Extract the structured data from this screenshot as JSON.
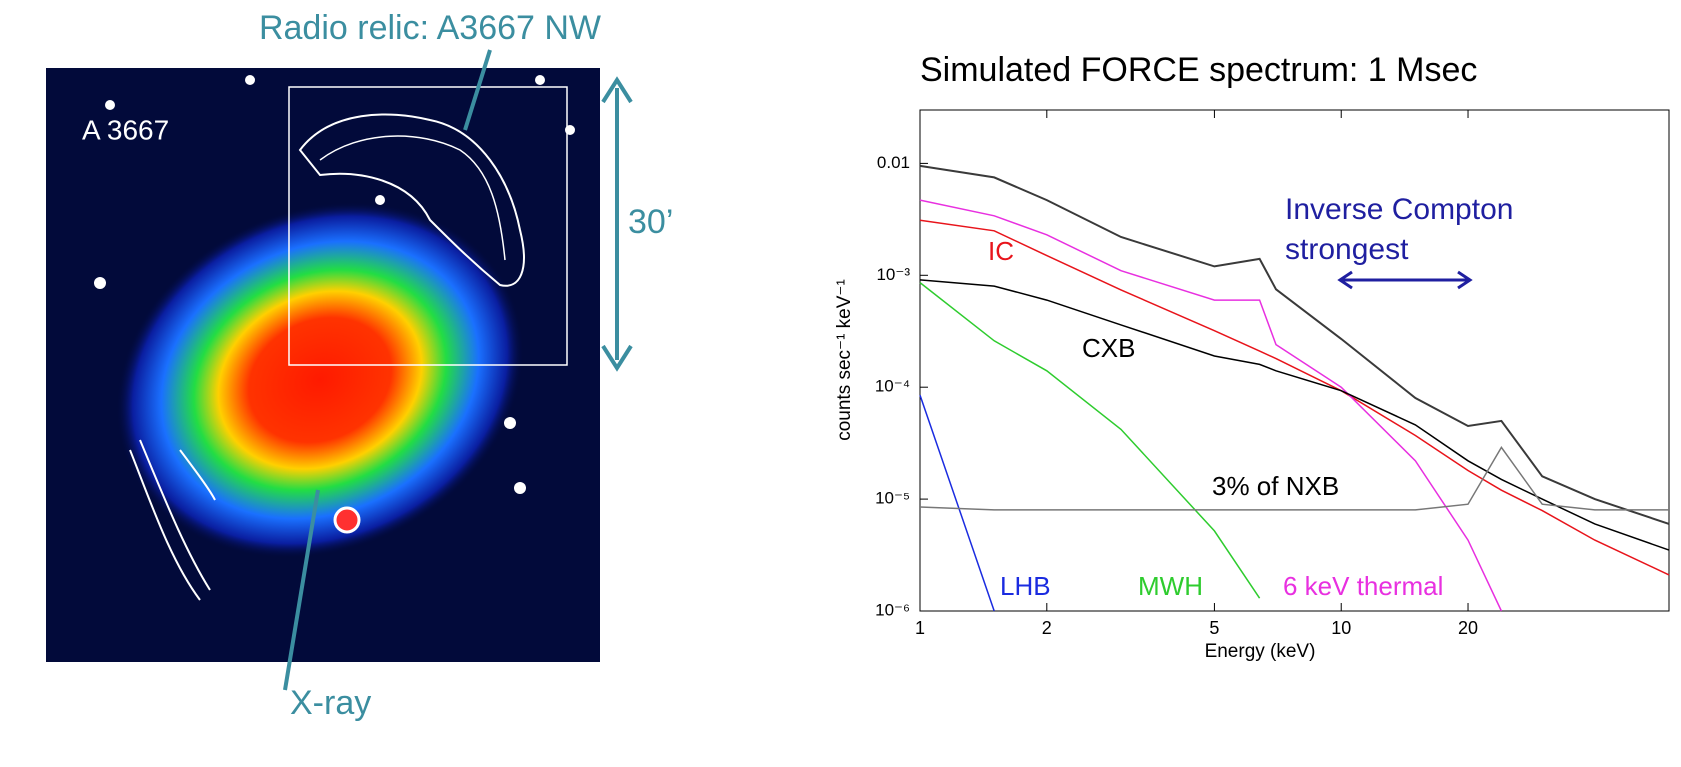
{
  "figure": {
    "annotations": {
      "relic": "Radio relic: A3667 NW",
      "cluster": "A 3667",
      "scale": "30’",
      "xray": "X-ray"
    }
  },
  "chart_data": {
    "type": "line",
    "title": "Simulated FORCE spectrum: 1 Msec",
    "x_label": "Energy (keV)",
    "y_label": "counts sec⁻¹ keV⁻¹",
    "log_x": true,
    "log_y": true,
    "grid": false,
    "xlim": [
      1,
      60
    ],
    "ylim": [
      1e-06,
      0.03
    ],
    "xticks": [
      1,
      2,
      5,
      10,
      20
    ],
    "yticks": [
      0.01,
      {
        "value": 0.001,
        "label": "10⁻³"
      },
      {
        "value": 0.0001,
        "label": "10⁻⁴"
      },
      {
        "value": 1e-05,
        "label": "10⁻⁵"
      },
      {
        "value": 1e-06,
        "label": "10⁻⁶"
      }
    ],
    "x": [
      1,
      1.5,
      2,
      3,
      5,
      6.4,
      7,
      10,
      15,
      20,
      24,
      30,
      40,
      60
    ],
    "series": [
      {
        "color": "#3a3a3a",
        "values": [
          0.0095,
          0.0075,
          0.0047,
          0.0022,
          0.0012,
          0.0014,
          0.00075,
          0.00027,
          8e-05,
          4.5e-05,
          5e-05,
          1.6e-05,
          1e-05,
          6e-06
        ]
      },
      {
        "name": "IC",
        "color": "#e8141b",
        "values": [
          0.0031,
          0.0025,
          0.0015,
          0.00074,
          0.00032,
          0.00021,
          0.00018,
          9.3e-05,
          3.7e-05,
          1.8e-05,
          1.2e-05,
          7.9e-06,
          4.3e-06,
          2.1e-06
        ]
      },
      {
        "name": "6 keV thermal",
        "color": "#e830e0",
        "values": [
          0.0047,
          0.0034,
          0.0023,
          0.0011,
          0.0006,
          0.0006,
          0.00024,
          0.0001,
          2.2e-05,
          4.3e-06,
          1e-06,
          null,
          null,
          null
        ]
      },
      {
        "name": "CXB",
        "color": "#000000",
        "values": [
          0.00091,
          0.0008,
          0.0006,
          0.00036,
          0.00019,
          0.00016,
          0.00014,
          9.3e-05,
          4.6e-05,
          2.2e-05,
          1.5e-05,
          1e-05,
          6e-06,
          3.5e-06
        ]
      },
      {
        "name": "MWH",
        "color": "#2ecc2e",
        "values": [
          0.00086,
          0.00026,
          0.00014,
          4.2e-05,
          5.2e-06,
          1.3e-06,
          null,
          null,
          null,
          null,
          null,
          null,
          null,
          null
        ]
      },
      {
        "name": "LHB",
        "color": "#1a2be0",
        "values": [
          8.5e-05,
          1e-06,
          null,
          null,
          null,
          null,
          null,
          null,
          null,
          null,
          null,
          null,
          null,
          null
        ]
      },
      {
        "name": "3% of NXB",
        "color": "#777777",
        "values": [
          8.5e-06,
          8e-06,
          8e-06,
          8e-06,
          8e-06,
          8e-06,
          8e-06,
          8e-06,
          8e-06,
          9e-06,
          2.9e-05,
          9e-06,
          8e-06,
          8e-06
        ]
      }
    ],
    "annotation": "Inverse Compton strongest",
    "annotation_color": "#1f1fa0"
  }
}
